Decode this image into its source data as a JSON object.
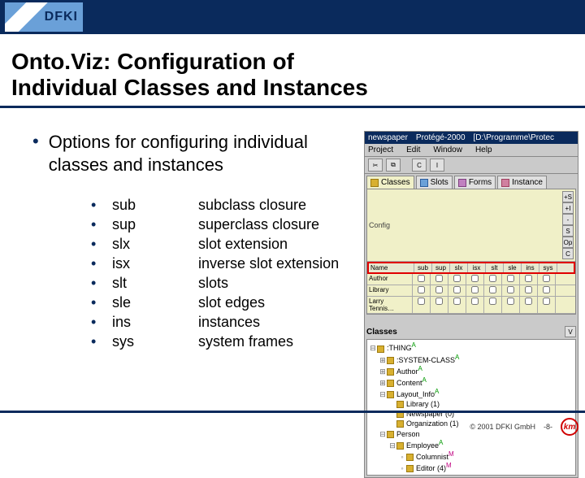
{
  "header": {
    "logo_text": "DFKI",
    "title": "Onto.Viz: Configuration of\nIndividual Classes and Instances"
  },
  "main_bullet": "Options for configuring individual classes and instances",
  "options": [
    {
      "abbr": "sub",
      "desc": "subclass closure"
    },
    {
      "abbr": "sup",
      "desc": "superclass closure"
    },
    {
      "abbr": "slx",
      "desc": "slot extension"
    },
    {
      "abbr": "isx",
      "desc": "inverse slot extension"
    },
    {
      "abbr": "slt",
      "desc": "slots"
    },
    {
      "abbr": "sle",
      "desc": "slot edges"
    },
    {
      "abbr": "ins",
      "desc": "instances"
    },
    {
      "abbr": "sys",
      "desc": "system frames"
    }
  ],
  "app": {
    "win_icon": "newspaper",
    "win_app": "Protégé-2000",
    "win_path": "[D:\\Programme\\Protec",
    "menus": [
      "Project",
      "Edit",
      "Window",
      "Help"
    ],
    "tabs": [
      {
        "label": "Classes",
        "kind": "c",
        "active": true
      },
      {
        "label": "Slots",
        "kind": "s",
        "active": false
      },
      {
        "label": "Forms",
        "kind": "f",
        "active": false
      },
      {
        "label": "Instance",
        "kind": "i",
        "active": false
      }
    ],
    "config_label": "Config",
    "config_buttons": [
      "+S",
      "+I",
      "-",
      "S",
      "Op",
      "C"
    ],
    "grid_cols": [
      "Name",
      "sub",
      "sup",
      "slx",
      "isx",
      "slt",
      "sle",
      "ins",
      "sys"
    ],
    "grid_rows": [
      {
        "name": "Author",
        "checks": [
          false,
          false,
          false,
          false,
          false,
          false,
          false,
          false
        ]
      },
      {
        "name": "Library",
        "checks": [
          false,
          false,
          false,
          false,
          false,
          false,
          false,
          false
        ]
      },
      {
        "name": "Larry Tennis…",
        "checks": [
          false,
          false,
          false,
          false,
          false,
          false,
          false,
          false
        ]
      }
    ],
    "classes_label": "Classes",
    "classes_btn": "V",
    "tree": [
      {
        "indent": 0,
        "tw": "⊟",
        "label": ":THING",
        "sup": "A"
      },
      {
        "indent": 1,
        "tw": "⊞",
        "label": ":SYSTEM-CLASS",
        "sup": "A"
      },
      {
        "indent": 1,
        "tw": "⊞",
        "label": "Author",
        "sup": "A"
      },
      {
        "indent": 1,
        "tw": "⊞",
        "label": "Content",
        "sup": "A"
      },
      {
        "indent": 1,
        "tw": "⊟",
        "label": "Layout_Info",
        "sup": "A"
      },
      {
        "indent": 2,
        "tw": " ",
        "label": "Library  (1)",
        "sup": ""
      },
      {
        "indent": 2,
        "tw": " ",
        "label": "Newspaper  (0)",
        "sup": ""
      },
      {
        "indent": 2,
        "tw": " ",
        "label": "Organization  (1)",
        "sup": ""
      },
      {
        "indent": 1,
        "tw": "⊟",
        "label": "Person",
        "sup": ""
      },
      {
        "indent": 2,
        "tw": "⊟",
        "label": "Employee",
        "sup": "A"
      },
      {
        "indent": 3,
        "tw": "◦",
        "label": "Columnist",
        "sup": "M"
      },
      {
        "indent": 3,
        "tw": "◦",
        "label": "Editor  (4)",
        "sup": "M"
      }
    ]
  },
  "footer": {
    "copyright": "© 2001 DFKI GmbH",
    "page": "-8-",
    "km": "km"
  },
  "colors": {
    "brand": "#0a2a5c",
    "highlight": "#e00000",
    "sup_a": "#009900",
    "sup_m": "#c00080"
  }
}
